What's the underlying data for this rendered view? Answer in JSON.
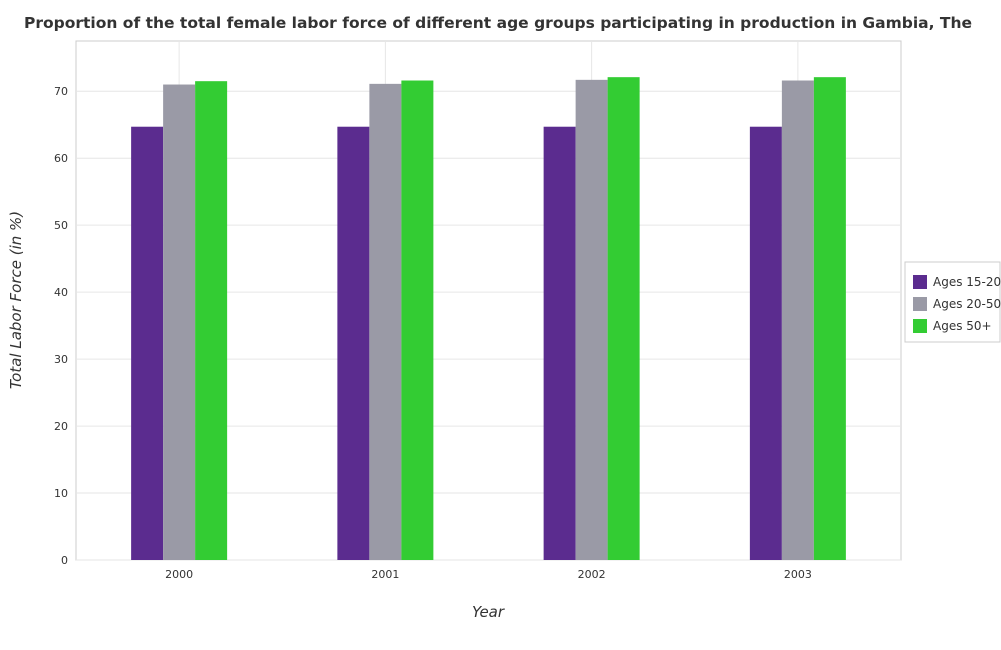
{
  "chart_data": {
    "type": "bar",
    "title": "Proportion of the total female labor force of different age groups participating in production in Gambia, The",
    "xlabel": "Year",
    "ylabel": "Total Labor Force (in %)",
    "categories": [
      "2000",
      "2001",
      "2002",
      "2003"
    ],
    "ylim": [
      0,
      77.5
    ],
    "yticks": [
      0,
      10,
      20,
      30,
      40,
      50,
      60,
      70
    ],
    "grid": true,
    "legend_position": "right",
    "series": [
      {
        "name": "Ages 15-20",
        "color": "#5b2c8f",
        "values": [
          64.7,
          64.7,
          64.7,
          64.7
        ]
      },
      {
        "name": "Ages 20-50",
        "color": "#9a9aa6",
        "values": [
          71.0,
          71.1,
          71.7,
          71.6
        ]
      },
      {
        "name": "Ages 50+",
        "color": "#33cc33",
        "values": [
          71.5,
          71.6,
          72.1,
          72.1
        ]
      }
    ]
  }
}
